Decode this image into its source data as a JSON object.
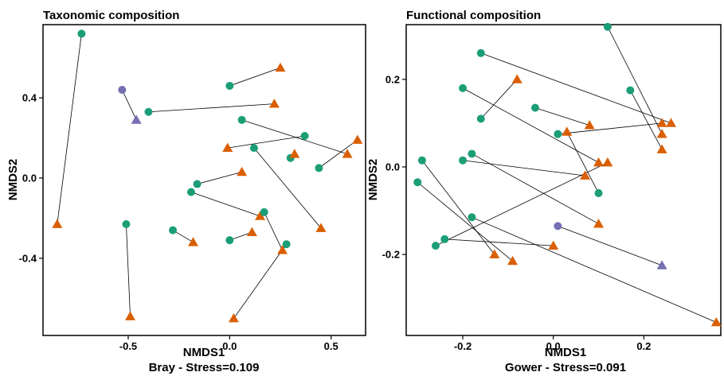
{
  "chart_data": [
    {
      "type": "scatter",
      "title": "Taxonomic composition",
      "xlabel": "NMDS1",
      "subtitle": "Bray - Stress=0.109",
      "ylabel": "NMDS2",
      "xlim": [
        -0.92,
        0.67
      ],
      "ylim": [
        -0.785,
        0.765
      ],
      "xticks": [
        -0.5,
        0.0,
        0.5
      ],
      "xtick_labels": [
        "-0.5",
        "0.0",
        "0.5"
      ],
      "yticks": [
        -0.4,
        0.0,
        0.4
      ],
      "ytick_labels": [
        "-0.4",
        "0.0",
        "0.4"
      ],
      "grid": false,
      "colors": {
        "green": "#1b9e77",
        "orange": "#d95f02",
        "purple": "#7570b3"
      },
      "pairs": [
        {
          "circle": [
            -0.73,
            0.72
          ],
          "triangle": [
            -0.85,
            -0.23
          ],
          "color": "orange"
        },
        {
          "circle": [
            -0.53,
            0.44
          ],
          "triangle": [
            -0.46,
            0.29
          ],
          "color": "purple"
        },
        {
          "circle": [
            -0.4,
            0.33
          ],
          "triangle": [
            0.22,
            0.37
          ],
          "color": "orange"
        },
        {
          "circle": [
            0.0,
            0.46
          ],
          "triangle": [
            0.25,
            0.55
          ],
          "color": "orange"
        },
        {
          "circle": [
            0.06,
            0.29
          ],
          "triangle": [
            0.58,
            0.12
          ],
          "color": "orange"
        },
        {
          "circle": [
            0.37,
            0.21
          ],
          "triangle": [
            -0.01,
            0.15
          ],
          "color": "orange"
        },
        {
          "circle": [
            0.12,
            0.15
          ],
          "triangle": [
            0.45,
            -0.25
          ],
          "color": "orange"
        },
        {
          "circle": [
            0.3,
            0.1
          ],
          "triangle": [
            0.32,
            0.12
          ],
          "color": "orange"
        },
        {
          "circle": [
            0.44,
            0.05
          ],
          "triangle": [
            0.63,
            0.19
          ],
          "color": "orange"
        },
        {
          "circle": [
            -0.16,
            -0.03
          ],
          "triangle": [
            0.06,
            0.03
          ],
          "color": "orange"
        },
        {
          "circle": [
            -0.19,
            -0.07
          ],
          "triangle": [
            0.15,
            -0.19
          ],
          "color": "orange"
        },
        {
          "circle": [
            0.17,
            -0.17
          ],
          "triangle": [
            0.26,
            -0.36
          ],
          "color": "orange"
        },
        {
          "circle": [
            -0.28,
            -0.26
          ],
          "triangle": [
            -0.18,
            -0.32
          ],
          "color": "orange"
        },
        {
          "circle": [
            0.0,
            -0.31
          ],
          "triangle": [
            0.11,
            -0.27
          ],
          "color": "orange"
        },
        {
          "circle": [
            0.28,
            -0.33
          ],
          "triangle": [
            0.02,
            -0.7
          ],
          "color": "orange"
        },
        {
          "circle": [
            -0.51,
            -0.23
          ],
          "triangle": [
            -0.49,
            -0.69
          ],
          "color": "orange"
        }
      ]
    },
    {
      "type": "scatter",
      "title": "Functional composition",
      "xlabel": "NMDS1",
      "subtitle": "Gower - Stress=0.091",
      "ylabel": "NMDS2",
      "xlim": [
        -0.325,
        0.37
      ],
      "ylim": [
        -0.385,
        0.325
      ],
      "xticks": [
        -0.2,
        0.0,
        0.2
      ],
      "xtick_labels": [
        "-0.2",
        "0.0",
        "0.2"
      ],
      "yticks": [
        -0.2,
        0.0,
        0.2
      ],
      "ytick_labels": [
        "-0.2",
        "0.0",
        "0.2"
      ],
      "grid": false,
      "colors": {
        "green": "#1b9e77",
        "orange": "#d95f02",
        "purple": "#7570b3"
      },
      "pairs": [
        {
          "circle": [
            0.12,
            0.32
          ],
          "triangle": [
            0.24,
            0.075
          ],
          "color": "orange"
        },
        {
          "circle": [
            -0.16,
            0.26
          ],
          "triangle": [
            0.26,
            0.1
          ],
          "color": "orange"
        },
        {
          "circle": [
            -0.16,
            0.11
          ],
          "triangle": [
            -0.08,
            0.2
          ],
          "color": "orange"
        },
        {
          "circle": [
            0.17,
            0.175
          ],
          "triangle": [
            0.24,
            0.04
          ],
          "color": "orange"
        },
        {
          "circle": [
            -0.2,
            0.18
          ],
          "triangle": [
            0.1,
            0.01
          ],
          "color": "orange"
        },
        {
          "circle": [
            -0.04,
            0.135
          ],
          "triangle": [
            0.08,
            0.095
          ],
          "color": "orange"
        },
        {
          "circle": [
            0.01,
            0.075
          ],
          "triangle": [
            0.24,
            0.1
          ],
          "color": "orange"
        },
        {
          "circle": [
            0.1,
            -0.06
          ],
          "triangle": [
            0.03,
            0.08
          ],
          "color": "orange"
        },
        {
          "circle": [
            -0.18,
            0.03
          ],
          "triangle": [
            0.1,
            -0.13
          ],
          "color": "orange"
        },
        {
          "circle": [
            -0.2,
            0.015
          ],
          "triangle": [
            0.07,
            -0.02
          ],
          "color": "orange"
        },
        {
          "circle": [
            -0.29,
            0.015
          ],
          "triangle": [
            -0.13,
            -0.2
          ],
          "color": "orange"
        },
        {
          "circle": [
            -0.3,
            -0.035
          ],
          "triangle": [
            -0.09,
            -0.215
          ],
          "color": "orange"
        },
        {
          "circle": [
            -0.26,
            -0.18
          ],
          "triangle": [
            0.12,
            0.01
          ],
          "color": "orange"
        },
        {
          "circle": [
            -0.24,
            -0.165
          ],
          "triangle": [
            0.0,
            -0.18
          ],
          "color": "orange"
        },
        {
          "circle": [
            -0.18,
            -0.115
          ],
          "triangle": [
            0.36,
            -0.355
          ],
          "color": "orange"
        },
        {
          "circle": [
            0.01,
            -0.135
          ],
          "triangle": [
            0.24,
            -0.225
          ],
          "color": "purple"
        }
      ]
    }
  ]
}
